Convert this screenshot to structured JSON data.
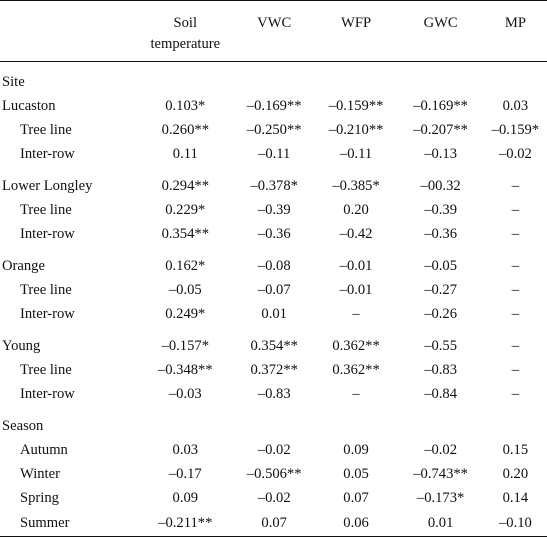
{
  "header": {
    "col0": "",
    "col1_line1": "Soil",
    "col1_line2": "temperature",
    "col2": "VWC",
    "col3": "WFP",
    "col4": "GWC",
    "col5": "MP"
  },
  "site_label": "Site",
  "season_label": "Season",
  "groups": [
    {
      "rows": [
        {
          "label": "Lucaston",
          "soil": "0.103*",
          "vwc": "–0.169**",
          "wfp": "–0.159**",
          "gwc": "–0.169**",
          "mp": "0.03"
        },
        {
          "label": "Tree line",
          "soil": "0.260**",
          "vwc": "–0.250**",
          "wfp": "–0.210**",
          "gwc": "–0.207**",
          "mp": "–0.159*"
        },
        {
          "label": "Inter-row",
          "soil": "0.11",
          "vwc": "–0.11",
          "wfp": "–0.11",
          "gwc": "–0.13",
          "mp": "–0.02"
        }
      ]
    },
    {
      "rows": [
        {
          "label": "Lower Longley",
          "soil": "0.294**",
          "vwc": "–0.378*",
          "wfp": "–0.385*",
          "gwc": "–00.32",
          "mp": "–"
        },
        {
          "label": "Tree line",
          "soil": "0.229*",
          "vwc": "–0.39",
          "wfp": "0.20",
          "gwc": "–0.39",
          "mp": "–"
        },
        {
          "label": "Inter-row",
          "soil": "0.354**",
          "vwc": "–0.36",
          "wfp": "–0.42",
          "gwc": "–0.36",
          "mp": "–"
        }
      ]
    },
    {
      "rows": [
        {
          "label": "Orange",
          "soil": "0.162*",
          "vwc": "–0.08",
          "wfp": "–0.01",
          "gwc": "–0.05",
          "mp": "–"
        },
        {
          "label": "Tree line",
          "soil": "–0.05",
          "vwc": "–0.07",
          "wfp": "–0.01",
          "gwc": "–0.27",
          "mp": "–"
        },
        {
          "label": "Inter-row",
          "soil": "0.249*",
          "vwc": "0.01",
          "wfp": "–",
          "gwc": "–0.26",
          "mp": "–"
        }
      ]
    },
    {
      "rows": [
        {
          "label": "Young",
          "soil": "–0.157*",
          "vwc": "0.354**",
          "wfp": "0.362**",
          "gwc": "–0.55",
          "mp": "–"
        },
        {
          "label": "Tree line",
          "soil": "–0.348**",
          "vwc": "0.372**",
          "wfp": "0.362**",
          "gwc": "–0.83",
          "mp": "–"
        },
        {
          "label": "Inter-row",
          "soil": "–0.03",
          "vwc": "–0.83",
          "wfp": "–",
          "gwc": "–0.84",
          "mp": "–"
        }
      ]
    }
  ],
  "seasons": [
    {
      "label": "Autumn",
      "soil": "0.03",
      "vwc": "–0.02",
      "wfp": "0.09",
      "gwc": "–0.02",
      "mp": "0.15"
    },
    {
      "label": "Winter",
      "soil": "–0.17",
      "vwc": "–0.506**",
      "wfp": "0.05",
      "gwc": "–0.743**",
      "mp": "0.20"
    },
    {
      "label": "Spring",
      "soil": "0.09",
      "vwc": "–0.02",
      "wfp": "0.07",
      "gwc": "–0.173*",
      "mp": "0.14"
    },
    {
      "label": "Summer",
      "soil": "–0.211**",
      "vwc": "0.07",
      "wfp": "0.06",
      "gwc": "0.01",
      "mp": "–0.10"
    }
  ]
}
